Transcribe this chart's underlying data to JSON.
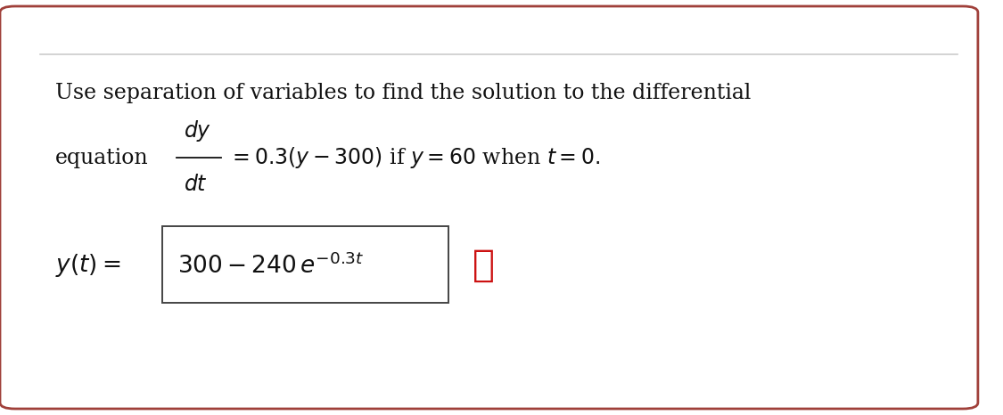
{
  "bg_outer": "#ffffff",
  "bg_inner": "#ffffff",
  "border_outer_color": "#a0403a",
  "separator_color": "#cccccc",
  "text_color": "#111111",
  "answer_box_color": "#444444",
  "cross_color": "#cc1111",
  "line1": "Use separation of variables to find the solution to the differential",
  "font_size_main": 17,
  "font_size_answer": 19,
  "font_size_cross": 30
}
